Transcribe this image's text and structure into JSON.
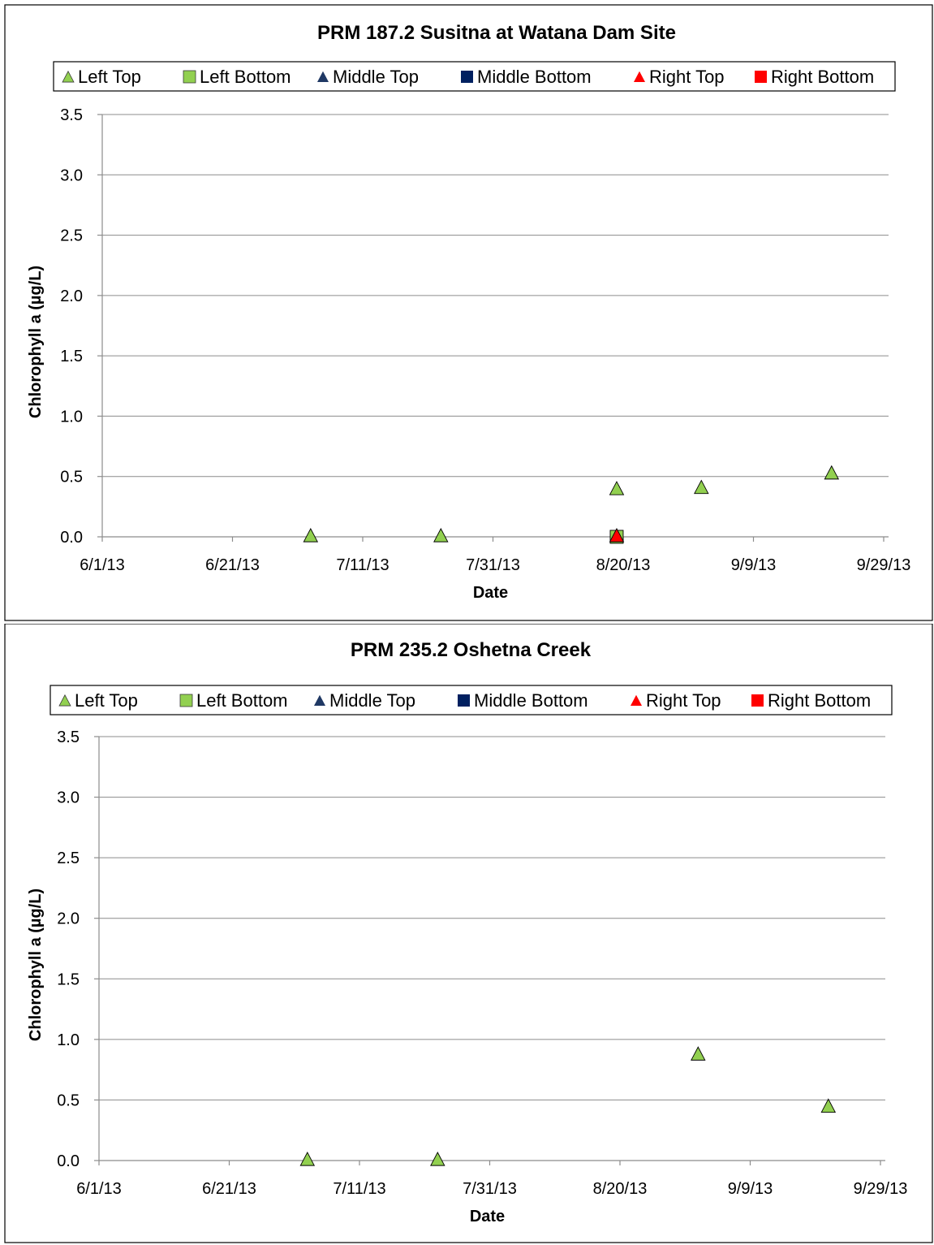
{
  "chart_data": [
    {
      "type": "scatter",
      "title": "PRM 187.2 Susitna at Watana Dam Site",
      "xlabel": "Date",
      "ylabel": "Chlorophyll a (µg/L)",
      "ylim": [
        0,
        3.5
      ],
      "yticks": [
        "0.0",
        "0.5",
        "1.0",
        "1.5",
        "2.0",
        "2.5",
        "3.0",
        "3.5"
      ],
      "xlim": [
        "2013-06-01",
        "2013-09-29"
      ],
      "xticks": [
        "6/1/13",
        "6/21/13",
        "7/11/13",
        "7/31/13",
        "8/20/13",
        "9/9/13",
        "9/29/13"
      ],
      "grid": "horizontal",
      "legend_position": "top",
      "series": [
        {
          "name": "Left Top",
          "marker": "triangle",
          "color": "#92d050",
          "points": [
            [
              "2013-07-03",
              0.0
            ],
            [
              "2013-07-23",
              0.0
            ],
            [
              "2013-08-19",
              0.39
            ],
            [
              "2013-09-01",
              0.4
            ],
            [
              "2013-09-21",
              0.52
            ]
          ]
        },
        {
          "name": "Left Bottom",
          "marker": "square",
          "color": "#92d050",
          "points": [
            [
              "2013-08-19",
              0.0
            ]
          ]
        },
        {
          "name": "Middle Top",
          "marker": "triangle",
          "color": "#1f3864",
          "points": []
        },
        {
          "name": "Middle Bottom",
          "marker": "square",
          "color": "#002060",
          "points": []
        },
        {
          "name": "Right Top",
          "marker": "triangle",
          "color": "#ff0000",
          "points": [
            [
              "2013-08-19",
              0.0
            ]
          ]
        },
        {
          "name": "Right Bottom",
          "marker": "square",
          "color": "#ff0000",
          "points": []
        }
      ]
    },
    {
      "type": "scatter",
      "title": "PRM 235.2 Oshetna Creek",
      "xlabel": "Date",
      "ylabel": "Chlorophyll a (µg/L)",
      "ylim": [
        0,
        3.5
      ],
      "yticks": [
        "0.0",
        "0.5",
        "1.0",
        "1.5",
        "2.0",
        "2.5",
        "3.0",
        "3.5"
      ],
      "xlim": [
        "2013-06-01",
        "2013-09-29"
      ],
      "xticks": [
        "6/1/13",
        "6/21/13",
        "7/11/13",
        "7/31/13",
        "8/20/13",
        "9/9/13",
        "9/29/13"
      ],
      "grid": "horizontal",
      "legend_position": "top",
      "series": [
        {
          "name": "Left Top",
          "marker": "triangle",
          "color": "#92d050",
          "points": [
            [
              "2013-07-03",
              0.0
            ],
            [
              "2013-07-23",
              0.0
            ],
            [
              "2013-09-01",
              0.87
            ],
            [
              "2013-09-21",
              0.44
            ]
          ]
        },
        {
          "name": "Left Bottom",
          "marker": "square",
          "color": "#92d050",
          "points": []
        },
        {
          "name": "Middle Top",
          "marker": "triangle",
          "color": "#1f3864",
          "points": []
        },
        {
          "name": "Middle Bottom",
          "marker": "square",
          "color": "#002060",
          "points": []
        },
        {
          "name": "Right Top",
          "marker": "triangle",
          "color": "#ff0000",
          "points": []
        },
        {
          "name": "Right Bottom",
          "marker": "square",
          "color": "#ff0000",
          "points": []
        }
      ]
    }
  ]
}
